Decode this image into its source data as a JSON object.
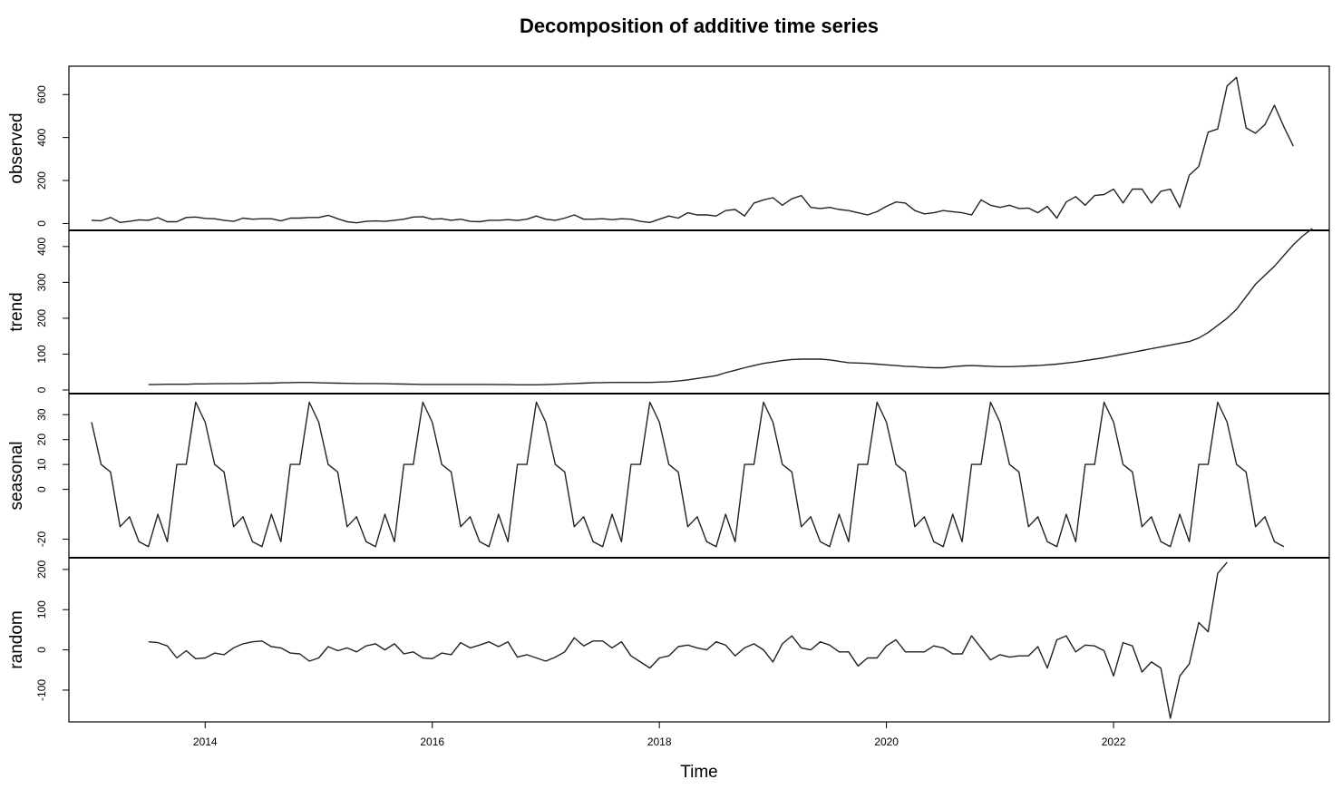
{
  "chart_data": {
    "type": "line",
    "title": "Decomposition of additive time series",
    "xlabel": "Time",
    "start": 2013.0,
    "frequency": 12,
    "xlim": [
      2012.8,
      2023.9
    ],
    "xticks": [
      2014,
      2016,
      2018,
      2020,
      2022
    ],
    "xtick_labels": [
      "2014",
      "2016",
      "2018",
      "2020",
      "2022"
    ],
    "grid": false,
    "panels": [
      {
        "name": "observed",
        "ylim": [
          -15,
          715
        ],
        "yticks": [
          0,
          200,
          400,
          600
        ],
        "ytick_labels": [
          "0",
          "200",
          "400",
          "600"
        ],
        "values": [
          15,
          13,
          28,
          5,
          10,
          17,
          15,
          27,
          8,
          8,
          28,
          30,
          24,
          22,
          15,
          10,
          25,
          20,
          22,
          22,
          12,
          25,
          25,
          28,
          28,
          38,
          22,
          8,
          3,
          10,
          12,
          10,
          15,
          20,
          30,
          32,
          20,
          22,
          15,
          20,
          10,
          8,
          15,
          15,
          18,
          14,
          20,
          35,
          20,
          15,
          25,
          40,
          20,
          20,
          22,
          18,
          22,
          20,
          10,
          5,
          20,
          35,
          25,
          50,
          40,
          40,
          35,
          60,
          65,
          35,
          95,
          110,
          120,
          85,
          115,
          130,
          75,
          70,
          75,
          65,
          60,
          50,
          40,
          55,
          80,
          100,
          95,
          60,
          45,
          50,
          60,
          55,
          50,
          40,
          110,
          85,
          75,
          85,
          70,
          72,
          50,
          80,
          25,
          100,
          125,
          85,
          130,
          135,
          160,
          95,
          160,
          160,
          95,
          150,
          160,
          75,
          225,
          265,
          425,
          440,
          640,
          680,
          445,
          420,
          460,
          550,
          450,
          360
        ]
      },
      {
        "name": "trend",
        "ylim": [
          0,
          435
        ],
        "yticks": [
          0,
          100,
          200,
          300,
          400
        ],
        "ytick_labels": [
          "0",
          "100",
          "200",
          "300",
          "400"
        ],
        "values": [
          null,
          null,
          null,
          null,
          null,
          null,
          15,
          15.5,
          16,
          16,
          16,
          17,
          17,
          17.5,
          17.5,
          18,
          18,
          18.5,
          19,
          19,
          20,
          20.5,
          21,
          21,
          20,
          19.5,
          19,
          18.5,
          18,
          18,
          18,
          17.5,
          17,
          16.5,
          16,
          15.5,
          15.5,
          15.5,
          15.5,
          15.5,
          15.5,
          15.5,
          15.5,
          15,
          15,
          14.5,
          14.5,
          14.5,
          15,
          16,
          17,
          18,
          19,
          20,
          20.5,
          21,
          21,
          21,
          21,
          21,
          22,
          23,
          25,
          28,
          32,
          36,
          40,
          48,
          55,
          62,
          68,
          74,
          78,
          82,
          85,
          86,
          86,
          86,
          84,
          80,
          76,
          75,
          74,
          72,
          70,
          68,
          66,
          65,
          63,
          62,
          62,
          65,
          67,
          68,
          67,
          66,
          65,
          65,
          66,
          67,
          68,
          70,
          72,
          75,
          78,
          82,
          86,
          90,
          95,
          100,
          105,
          110,
          115,
          120,
          125,
          130,
          135,
          145,
          160,
          180,
          200,
          225,
          260,
          295,
          320,
          345,
          375,
          405,
          430,
          450,
          null,
          null,
          null,
          null,
          null,
          null
        ]
      },
      {
        "name": "seasonal",
        "ylim": [
          -26,
          37
        ],
        "yticks": [
          -20,
          0,
          10,
          20,
          30
        ],
        "ytick_labels": [
          "-20",
          "0",
          "10",
          "20",
          "30"
        ],
        "values": [
          27,
          10,
          7,
          -15,
          -11,
          -21,
          -23,
          -10,
          -21,
          10,
          10,
          35,
          27,
          10,
          7,
          -15,
          -11,
          -21,
          -23,
          -10,
          -21,
          10,
          10,
          35,
          27,
          10,
          7,
          -15,
          -11,
          -21,
          -23,
          -10,
          -21,
          10,
          10,
          35,
          27,
          10,
          7,
          -15,
          -11,
          -21,
          -23,
          -10,
          -21,
          10,
          10,
          35,
          27,
          10,
          7,
          -15,
          -11,
          -21,
          -23,
          -10,
          -21,
          10,
          10,
          35,
          27,
          10,
          7,
          -15,
          -11,
          -21,
          -23,
          -10,
          -21,
          10,
          10,
          35,
          27,
          10,
          7,
          -15,
          -11,
          -21,
          -23,
          -10,
          -21,
          10,
          10,
          35,
          27,
          10,
          7,
          -15,
          -11,
          -21,
          -23,
          -10,
          -21,
          10,
          10,
          35,
          27,
          10,
          7,
          -15,
          -11,
          -21,
          -23,
          -10,
          -21,
          10,
          10,
          35,
          27,
          10,
          7,
          -15,
          -11,
          -21,
          -23,
          -10,
          -21,
          10,
          10,
          35,
          27,
          10,
          7,
          -15,
          -11,
          -21,
          -23
        ]
      },
      {
        "name": "random",
        "ylim": [
          -170,
          220
        ],
        "yticks": [
          -100,
          0,
          100,
          200
        ],
        "ytick_labels": [
          "-100",
          "0",
          "100",
          "200"
        ],
        "values": [
          null,
          null,
          null,
          null,
          null,
          null,
          20,
          18,
          10,
          -20,
          -2,
          -22,
          -20,
          -8,
          -12,
          5,
          15,
          20,
          22,
          8,
          5,
          -8,
          -10,
          -28,
          -20,
          8,
          -2,
          5,
          -5,
          10,
          15,
          0,
          15,
          -10,
          -5,
          -20,
          -22,
          -8,
          -12,
          18,
          5,
          12,
          20,
          8,
          20,
          -18,
          -12,
          -20,
          -28,
          -18,
          -5,
          30,
          10,
          22,
          22,
          5,
          20,
          -15,
          -30,
          -45,
          -20,
          -15,
          8,
          12,
          5,
          0,
          20,
          12,
          -15,
          5,
          15,
          0,
          -30,
          15,
          35,
          5,
          0,
          20,
          12,
          -5,
          -5,
          -40,
          -20,
          -20,
          10,
          25,
          -5,
          -5,
          -5,
          10,
          5,
          -10,
          -10,
          35,
          5,
          -25,
          -12,
          -18,
          -15,
          -15,
          8,
          -45,
          25,
          35,
          -5,
          12,
          10,
          -2,
          -65,
          18,
          10,
          -55,
          -30,
          -45,
          -170,
          -65,
          -35,
          68,
          45,
          190,
          218,
          null,
          null,
          null,
          null,
          null,
          null
        ]
      }
    ]
  }
}
